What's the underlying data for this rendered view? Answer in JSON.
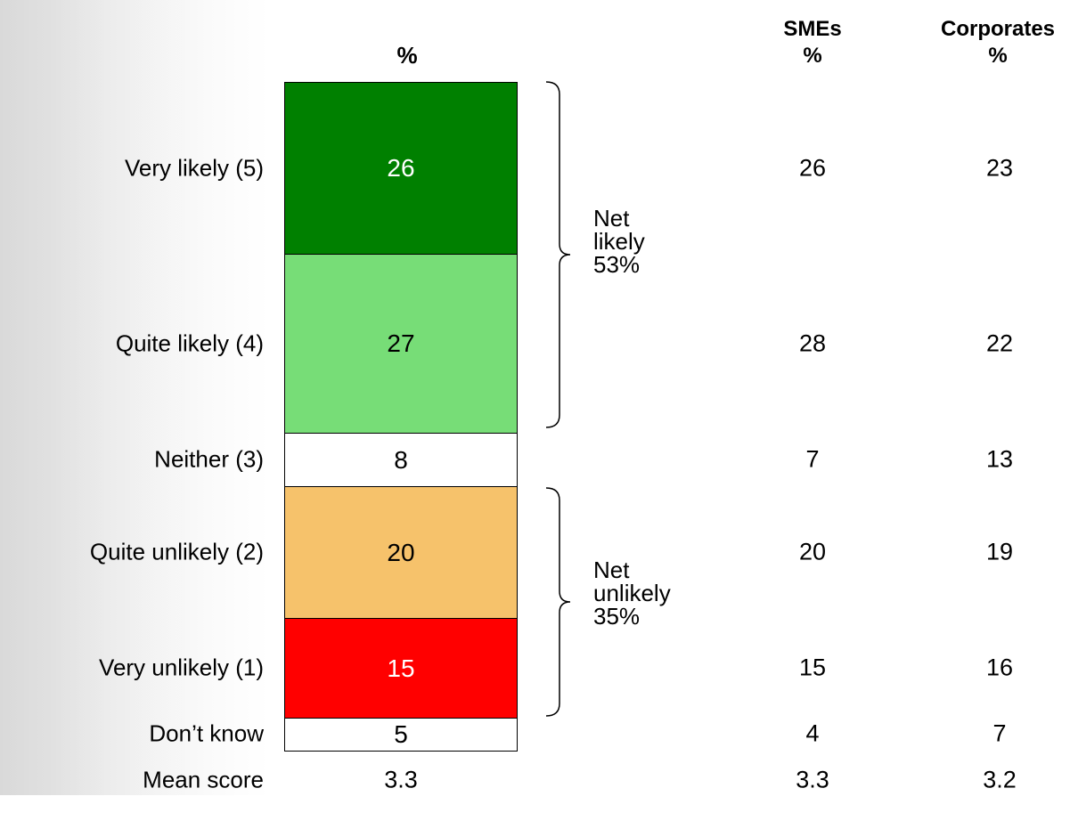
{
  "headers": {
    "main": "%",
    "col1_line1": "SMEs",
    "col1_line2": "%",
    "col2_line1": "Corporates",
    "col2_line2": "%"
  },
  "chart_data": {
    "type": "bar",
    "stacked": true,
    "title": "",
    "categories": [
      "Very likely (5)",
      "Quite likely (4)",
      "Neither (3)",
      "Quite unlikely (2)",
      "Very unlikely (1)",
      "Don’t know"
    ],
    "values": [
      26,
      27,
      8,
      20,
      15,
      5
    ],
    "colors": [
      "#008000",
      "#77dd77",
      "#ffffff",
      "#f6c26b",
      "#ff0000",
      "#ffffff"
    ],
    "text_colors": [
      "#ffffff",
      "#000000",
      "#000000",
      "#000000",
      "#ffffff",
      "#000000"
    ],
    "columns": [
      {
        "name": "SMEs",
        "values": [
          26,
          28,
          7,
          20,
          15,
          4
        ],
        "mean": "3.3"
      },
      {
        "name": "Corporates",
        "values": [
          23,
          22,
          13,
          19,
          16,
          7
        ],
        "mean": "3.2"
      }
    ],
    "mean_label": "Mean score",
    "mean": "3.3",
    "nets": [
      {
        "line1": "Net",
        "line2": "likely",
        "line3": "53%"
      },
      {
        "line1": "Net",
        "line2": "unlikely",
        "line3": "35%"
      }
    ]
  }
}
